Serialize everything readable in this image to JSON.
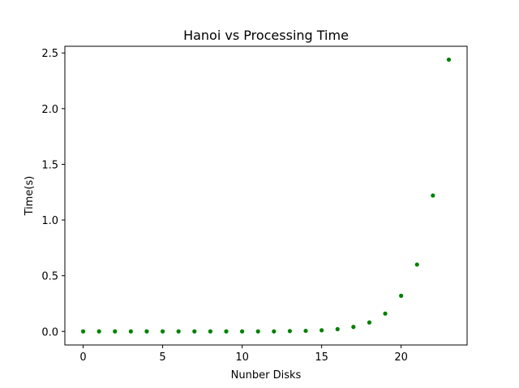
{
  "chart_data": {
    "type": "scatter",
    "title": "Hanoi vs Processing Time",
    "xlabel": "Nunber Disks",
    "ylabel": "Time(s)",
    "xlim": [
      -1.15,
      24.15
    ],
    "ylim": [
      -0.122,
      2.56
    ],
    "xticks": [
      0,
      5,
      10,
      15,
      20
    ],
    "xtick_labels": [
      "0",
      "5",
      "10",
      "15",
      "20"
    ],
    "yticks": [
      0.0,
      0.5,
      1.0,
      1.5,
      2.0,
      2.5
    ],
    "ytick_labels": [
      "0.0",
      "0.5",
      "1.0",
      "1.5",
      "2.0",
      "2.5"
    ],
    "grid": false,
    "point_color": "#008000",
    "x": [
      0,
      1,
      2,
      3,
      4,
      5,
      6,
      7,
      8,
      9,
      10,
      11,
      12,
      13,
      14,
      15,
      16,
      17,
      18,
      19,
      20,
      21,
      22,
      23
    ],
    "y": [
      0.0,
      0.0,
      0.0,
      0.0,
      0.0,
      0.0,
      0.0,
      0.0,
      0.0,
      0.0,
      0.0,
      0.0,
      0.0,
      0.003,
      0.005,
      0.01,
      0.02,
      0.04,
      0.08,
      0.16,
      0.32,
      0.6,
      1.22,
      2.44
    ]
  }
}
